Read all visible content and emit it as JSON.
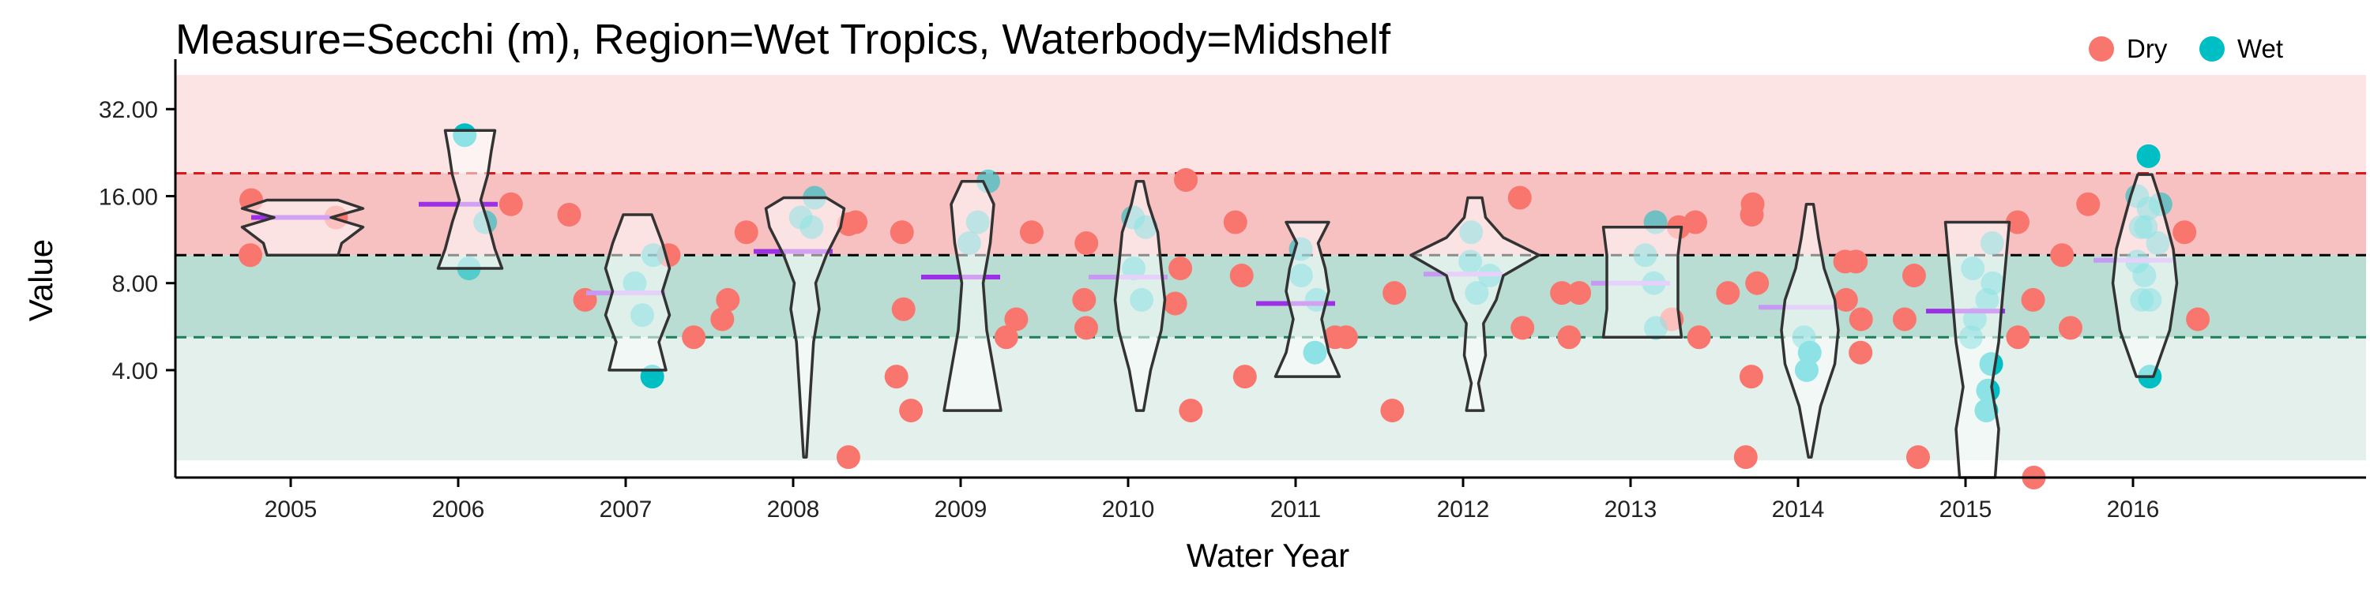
{
  "chart_data": {
    "type": "scatter",
    "title": "Measure=Secchi (m), Region=Wet Tropics, Waterbody=Midshelf",
    "xlabel": "Water Year",
    "ylabel": "Value",
    "y_scale": "log2",
    "ylim": [
      1.7,
      42
    ],
    "y_ticks": [
      4,
      8,
      16,
      32
    ],
    "y_tick_labels": [
      "4.00",
      "8.00",
      "16.00",
      "32.00"
    ],
    "categories": [
      "2005",
      "2006",
      "2007",
      "2008",
      "2009",
      "2010",
      "2011",
      "2012",
      "2013",
      "2014",
      "2015",
      "2016"
    ],
    "legend": {
      "position": "top-right",
      "items": [
        {
          "label": "Dry",
          "color": "#F8766D"
        },
        {
          "label": "Wet",
          "color": "#00BFC4"
        }
      ]
    },
    "bands": [
      {
        "from": 1.95,
        "to": 5.2,
        "color": "#e3f0ec"
      },
      {
        "from": 5.2,
        "to": 10,
        "color": "#b9ddd2"
      },
      {
        "from": 10,
        "to": 19.2,
        "color": "#f8c1c1"
      },
      {
        "from": 19.2,
        "to": 42,
        "color": "#fce4e4"
      }
    ],
    "reference_lines": [
      {
        "value": 19.2,
        "color": "#d7191c"
      },
      {
        "value": 10,
        "color": "#000000"
      },
      {
        "value": 5.2,
        "color": "#1a7f5a"
      }
    ],
    "series": [
      {
        "name": "Dry",
        "color": "#F8766D",
        "points": [
          [
            0,
            15.5
          ],
          [
            0,
            13.5
          ],
          [
            0,
            10.0
          ],
          [
            1,
            15.0
          ],
          [
            2,
            13.8
          ],
          [
            2,
            10.0
          ],
          [
            2,
            7.0
          ],
          [
            2,
            5.2
          ],
          [
            3,
            12.0
          ],
          [
            3,
            12.8
          ],
          [
            3,
            7.0
          ],
          [
            3,
            13.0
          ],
          [
            3,
            6.0
          ],
          [
            3,
            2.0
          ],
          [
            4,
            12.0
          ],
          [
            4,
            6.0
          ],
          [
            4,
            2.9
          ],
          [
            4,
            12.0
          ],
          [
            4,
            6.5
          ],
          [
            4,
            5.2
          ],
          [
            4,
            3.8
          ],
          [
            5,
            18.2
          ],
          [
            5,
            11.0
          ],
          [
            5,
            9.0
          ],
          [
            5,
            7.0
          ],
          [
            5,
            6.8
          ],
          [
            5,
            5.6
          ],
          [
            5,
            2.9
          ],
          [
            6,
            13.0
          ],
          [
            6,
            5.2
          ],
          [
            6,
            8.5
          ],
          [
            6,
            5.2
          ],
          [
            6,
            3.8
          ],
          [
            7,
            15.8
          ],
          [
            7,
            7.4
          ],
          [
            7,
            5.6
          ],
          [
            7,
            2.9
          ],
          [
            8,
            12.5
          ],
          [
            8,
            7.4
          ],
          [
            8,
            6.0
          ],
          [
            8,
            5.2
          ],
          [
            8,
            13.0
          ],
          [
            8,
            7.4
          ],
          [
            8,
            5.2
          ],
          [
            9,
            13.8
          ],
          [
            9,
            9.5
          ],
          [
            9,
            8.0
          ],
          [
            9,
            7.0
          ],
          [
            9,
            15.0
          ],
          [
            9,
            9.5
          ],
          [
            9,
            7.4
          ],
          [
            9,
            6.0
          ],
          [
            9,
            3.8
          ],
          [
            9,
            4.6
          ],
          [
            9,
            2.0
          ],
          [
            10,
            13.0
          ],
          [
            10,
            8.5
          ],
          [
            10,
            7.0
          ],
          [
            10,
            6.0
          ],
          [
            10,
            5.2
          ],
          [
            10,
            2.0
          ],
          [
            10,
            1.7
          ],
          [
            11,
            15.0
          ],
          [
            11,
            12.0
          ],
          [
            11,
            10.0
          ],
          [
            11,
            6.0
          ],
          [
            11,
            5.6
          ]
        ]
      },
      {
        "name": "Wet",
        "color": "#00BFC4",
        "points": [
          [
            1,
            26.0
          ],
          [
            1,
            13.0
          ],
          [
            1,
            9.0
          ],
          [
            2,
            10.0
          ],
          [
            2,
            8.0
          ],
          [
            2,
            6.2
          ],
          [
            2,
            3.8
          ],
          [
            3,
            15.8
          ],
          [
            3,
            13.5
          ],
          [
            3,
            12.5
          ],
          [
            4,
            18.0
          ],
          [
            4,
            13.0
          ],
          [
            4,
            11.0
          ],
          [
            5,
            13.5
          ],
          [
            5,
            12.5
          ],
          [
            5,
            9.0
          ],
          [
            5,
            7.0
          ],
          [
            6,
            10.5
          ],
          [
            6,
            8.5
          ],
          [
            6,
            7.0
          ],
          [
            6,
            4.6
          ],
          [
            7,
            12.0
          ],
          [
            7,
            9.5
          ],
          [
            7,
            8.5
          ],
          [
            7,
            7.4
          ],
          [
            8,
            13.0
          ],
          [
            8,
            10.0
          ],
          [
            8,
            8.0
          ],
          [
            8,
            5.6
          ],
          [
            9,
            5.2
          ],
          [
            9,
            4.6
          ],
          [
            9,
            4.0
          ],
          [
            10,
            11.0
          ],
          [
            10,
            9.0
          ],
          [
            10,
            8.0
          ],
          [
            10,
            7.0
          ],
          [
            10,
            6.0
          ],
          [
            10,
            5.2
          ],
          [
            10,
            4.2
          ],
          [
            10,
            3.4
          ],
          [
            10,
            2.9
          ],
          [
            11,
            22.0
          ],
          [
            11,
            15.0
          ],
          [
            11,
            14.5
          ],
          [
            11,
            12.5
          ],
          [
            11,
            7.0
          ],
          [
            11,
            3.8
          ],
          [
            11,
            16.0
          ],
          [
            11,
            12.5
          ],
          [
            11,
            11.0
          ],
          [
            11,
            9.5
          ],
          [
            11,
            8.5
          ],
          [
            11,
            7.0
          ]
        ]
      }
    ],
    "summary_marks": [
      {
        "year": "2005",
        "value": 13.5,
        "color": "#9b30e6"
      },
      {
        "year": "2006",
        "value": 15.0,
        "color": "#9b30e6"
      },
      {
        "year": "2007",
        "value": 7.4,
        "color": "#c69af2"
      },
      {
        "year": "2008",
        "value": 10.3,
        "color": "#9b30e6"
      },
      {
        "year": "2009",
        "value": 8.4,
        "color": "#9b30e6"
      },
      {
        "year": "2010",
        "value": 8.4,
        "color": "#c69af2"
      },
      {
        "year": "2011",
        "value": 6.8,
        "color": "#9b30e6"
      },
      {
        "year": "2012",
        "value": 8.6,
        "color": "#c69af2"
      },
      {
        "year": "2013",
        "value": 8.0,
        "color": "#c69af2"
      },
      {
        "year": "2014",
        "value": 6.6,
        "color": "#c69af2"
      },
      {
        "year": "2015",
        "value": 6.4,
        "color": "#9b30e6"
      },
      {
        "year": "2016",
        "value": 9.6,
        "color": "#c69af2"
      }
    ],
    "violins": [
      {
        "year": "2005",
        "profile": [
          [
            10.0,
            0.5
          ],
          [
            11.0,
            0.55
          ],
          [
            12.5,
            0.85
          ],
          [
            13.5,
            0.4
          ],
          [
            14.5,
            0.85
          ],
          [
            15.5,
            0.5
          ]
        ]
      },
      {
        "year": "2006",
        "profile": [
          [
            9.0,
            0.45
          ],
          [
            10.5,
            0.35
          ],
          [
            13.0,
            0.25
          ],
          [
            15.5,
            0.15
          ],
          [
            19.0,
            0.25
          ],
          [
            23.0,
            0.3
          ],
          [
            27.0,
            0.35
          ]
        ]
      },
      {
        "year": "2007",
        "profile": [
          [
            4.0,
            0.4
          ],
          [
            5.0,
            0.3
          ],
          [
            6.2,
            0.45
          ],
          [
            7.5,
            0.35
          ],
          [
            9.0,
            0.45
          ],
          [
            11.0,
            0.35
          ],
          [
            13.8,
            0.2
          ]
        ]
      },
      {
        "year": "2008",
        "profile": [
          [
            2.0,
            0.02
          ],
          [
            3.5,
            0.08
          ],
          [
            5.0,
            0.12
          ],
          [
            6.5,
            0.2
          ],
          [
            8.0,
            0.15
          ],
          [
            10.0,
            0.3
          ],
          [
            12.5,
            0.5
          ],
          [
            14.5,
            0.55
          ],
          [
            15.8,
            0.3
          ]
        ]
      },
      {
        "year": "2009",
        "profile": [
          [
            2.9,
            0.4
          ],
          [
            4.0,
            0.3
          ],
          [
            5.5,
            0.2
          ],
          [
            8.0,
            0.15
          ],
          [
            11.0,
            0.25
          ],
          [
            15.0,
            0.3
          ],
          [
            18.0,
            0.15
          ]
        ]
      },
      {
        "year": "2010",
        "profile": [
          [
            2.9,
            0.05
          ],
          [
            4.0,
            0.15
          ],
          [
            5.5,
            0.3
          ],
          [
            7.0,
            0.35
          ],
          [
            9.0,
            0.3
          ],
          [
            12.0,
            0.25
          ],
          [
            15.0,
            0.12
          ],
          [
            18.0,
            0.05
          ]
        ]
      },
      {
        "year": "2011",
        "profile": [
          [
            3.8,
            0.45
          ],
          [
            4.6,
            0.3
          ],
          [
            6.0,
            0.2
          ],
          [
            7.5,
            0.3
          ],
          [
            9.0,
            0.25
          ],
          [
            11.0,
            0.15
          ],
          [
            13.0,
            0.3
          ]
        ]
      },
      {
        "year": "2012",
        "profile": [
          [
            2.9,
            0.12
          ],
          [
            3.6,
            0.05
          ],
          [
            4.5,
            0.15
          ],
          [
            5.8,
            0.12
          ],
          [
            7.0,
            0.3
          ],
          [
            8.5,
            0.4
          ],
          [
            10.0,
            0.9
          ],
          [
            11.5,
            0.4
          ],
          [
            13.5,
            0.15
          ],
          [
            15.8,
            0.1
          ]
        ]
      },
      {
        "year": "2013",
        "profile": [
          [
            5.2,
            0.55
          ],
          [
            6.5,
            0.5
          ],
          [
            8.0,
            0.5
          ],
          [
            10.0,
            0.5
          ],
          [
            12.5,
            0.55
          ]
        ]
      },
      {
        "year": "2014",
        "profile": [
          [
            2.0,
            0.02
          ],
          [
            3.0,
            0.15
          ],
          [
            4.2,
            0.35
          ],
          [
            5.5,
            0.4
          ],
          [
            7.0,
            0.35
          ],
          [
            9.0,
            0.2
          ],
          [
            11.5,
            0.12
          ],
          [
            15.0,
            0.05
          ]
        ]
      },
      {
        "year": "2015",
        "profile": [
          [
            1.7,
            0.25
          ],
          [
            2.5,
            0.3
          ],
          [
            3.5,
            0.2
          ],
          [
            5.0,
            0.3
          ],
          [
            7.0,
            0.35
          ],
          [
            9.5,
            0.4
          ],
          [
            13.0,
            0.45
          ]
        ]
      },
      {
        "year": "2016",
        "profile": [
          [
            3.8,
            0.12
          ],
          [
            5.5,
            0.35
          ],
          [
            8.0,
            0.45
          ],
          [
            10.5,
            0.4
          ],
          [
            13.0,
            0.3
          ],
          [
            16.0,
            0.2
          ],
          [
            19.0,
            0.1
          ]
        ]
      }
    ]
  }
}
